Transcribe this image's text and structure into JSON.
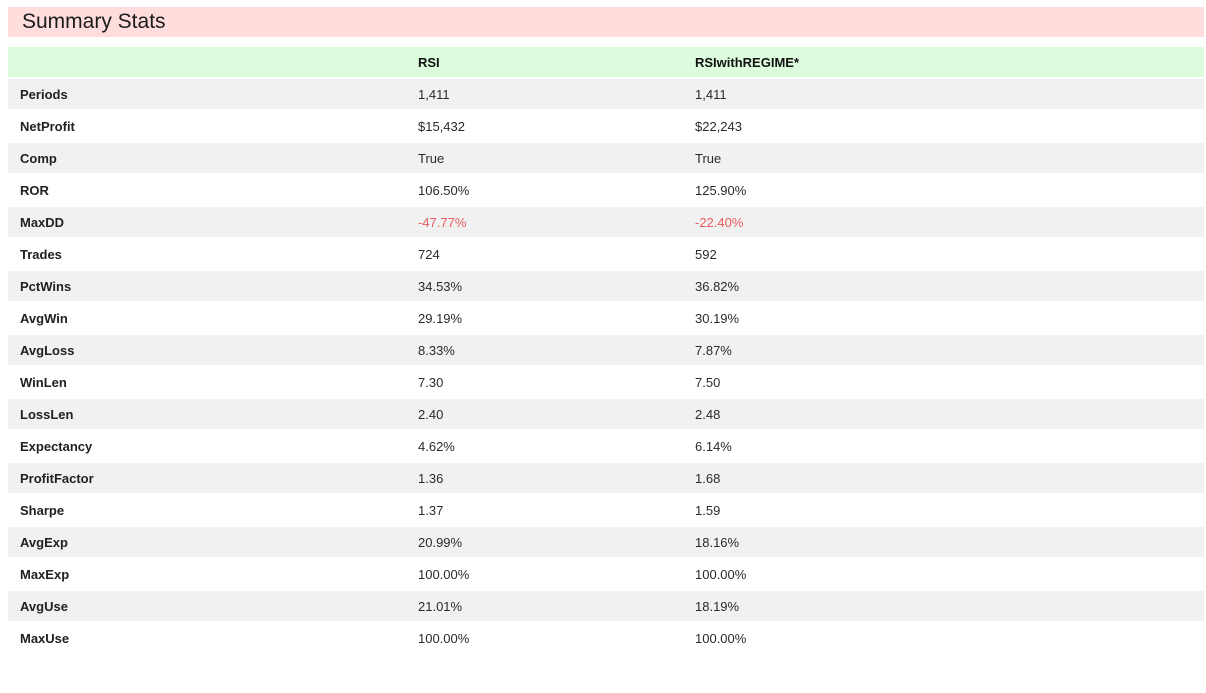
{
  "header": {
    "title": "Summary Stats"
  },
  "colors": {
    "title_bar_bg": "#ffdddd",
    "header_bg": "#ddfbdd",
    "stripe_bg": "#f1f1f1",
    "negative_color": "#e85b5e"
  },
  "table": {
    "columns": [
      "",
      "RSI",
      "RSIwithREGIME*"
    ],
    "rows": [
      {
        "label": "Periods",
        "rsi": "1,411",
        "regime": "1,411",
        "negative": false
      },
      {
        "label": "NetProfit",
        "rsi": "$15,432",
        "regime": "$22,243",
        "negative": false
      },
      {
        "label": "Comp",
        "rsi": "True",
        "regime": "True",
        "negative": false
      },
      {
        "label": "ROR",
        "rsi": "106.50%",
        "regime": "125.90%",
        "negative": false
      },
      {
        "label": "MaxDD",
        "rsi": "-47.77%",
        "regime": "-22.40%",
        "negative": true
      },
      {
        "label": "Trades",
        "rsi": "724",
        "regime": "592",
        "negative": false
      },
      {
        "label": "PctWins",
        "rsi": "34.53%",
        "regime": "36.82%",
        "negative": false
      },
      {
        "label": "AvgWin",
        "rsi": "29.19%",
        "regime": "30.19%",
        "negative": false
      },
      {
        "label": "AvgLoss",
        "rsi": "8.33%",
        "regime": "7.87%",
        "negative": false
      },
      {
        "label": "WinLen",
        "rsi": "7.30",
        "regime": "7.50",
        "negative": false
      },
      {
        "label": "LossLen",
        "rsi": "2.40",
        "regime": "2.48",
        "negative": false
      },
      {
        "label": "Expectancy",
        "rsi": "4.62%",
        "regime": "6.14%",
        "negative": false
      },
      {
        "label": "ProfitFactor",
        "rsi": "1.36",
        "regime": "1.68",
        "negative": false
      },
      {
        "label": "Sharpe",
        "rsi": "1.37",
        "regime": "1.59",
        "negative": false
      },
      {
        "label": "AvgExp",
        "rsi": "20.99%",
        "regime": "18.16%",
        "negative": false
      },
      {
        "label": "MaxExp",
        "rsi": "100.00%",
        "regime": "100.00%",
        "negative": false
      },
      {
        "label": "AvgUse",
        "rsi": "21.01%",
        "regime": "18.19%",
        "negative": false
      },
      {
        "label": "MaxUse",
        "rsi": "100.00%",
        "regime": "100.00%",
        "negative": false
      }
    ]
  }
}
